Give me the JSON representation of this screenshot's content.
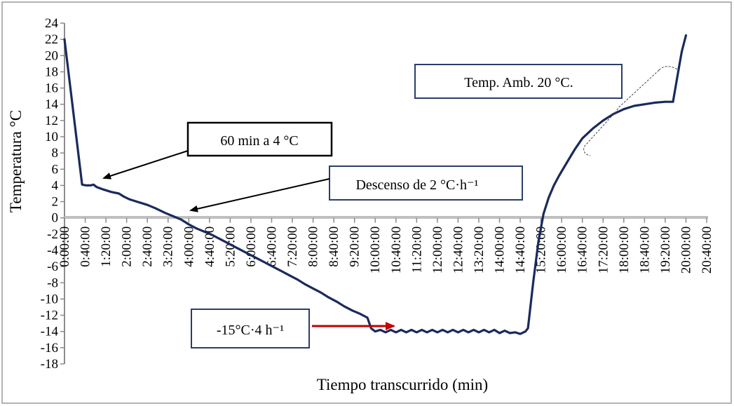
{
  "chart_data": {
    "type": "line",
    "xlabel": "Tiempo transcurrido (min)",
    "ylabel": "Temperatura °C",
    "ylim": [
      -18,
      24
    ],
    "y_ticks": [
      24,
      22,
      20,
      18,
      16,
      14,
      12,
      10,
      8,
      6,
      4,
      2,
      0,
      -2,
      -4,
      -6,
      -8,
      -10,
      -12,
      -14,
      -16,
      -18
    ],
    "xlim_minutes": [
      0,
      1240
    ],
    "x_tick_labels": [
      "0:00:00",
      "0:40:00",
      "1:20:00",
      "2:00:00",
      "2:40:00",
      "3:20:00",
      "4:00:00",
      "4:40:00",
      "5:20:00",
      "6:00:00",
      "6:40:00",
      "7:20:00",
      "8:00:00",
      "8:40:00",
      "9:20:00",
      "10:00:00",
      "10:40:00",
      "11:20:00",
      "12:00:00",
      "12:40:00",
      "13:20:00",
      "14:00:00",
      "14:40:00",
      "15:20:00",
      "16:00:00",
      "16:40:00",
      "17:20:00",
      "18:00:00",
      "18:40:00",
      "19:20:00",
      "20:00:00",
      "20:40:00"
    ],
    "grid": false,
    "series": [
      {
        "color": "#1a2a5c",
        "points": [
          [
            0,
            22
          ],
          [
            34,
            4.1
          ],
          [
            42,
            4.0
          ],
          [
            50,
            4.0
          ],
          [
            56,
            4.1
          ],
          [
            62,
            3.8
          ],
          [
            75,
            3.5
          ],
          [
            90,
            3.2
          ],
          [
            105,
            3.0
          ],
          [
            115,
            2.6
          ],
          [
            125,
            2.3
          ],
          [
            140,
            2.0
          ],
          [
            160,
            1.6
          ],
          [
            175,
            1.2
          ],
          [
            195,
            0.6
          ],
          [
            210,
            0.2
          ],
          [
            225,
            -0.2
          ],
          [
            240,
            -0.8
          ],
          [
            255,
            -1.3
          ],
          [
            270,
            -1.7
          ],
          [
            285,
            -2.1
          ],
          [
            300,
            -2.6
          ],
          [
            315,
            -3.1
          ],
          [
            330,
            -3.6
          ],
          [
            345,
            -4.1
          ],
          [
            360,
            -4.6
          ],
          [
            375,
            -5.1
          ],
          [
            390,
            -5.6
          ],
          [
            405,
            -6.1
          ],
          [
            420,
            -6.6
          ],
          [
            435,
            -7.1
          ],
          [
            450,
            -7.6
          ],
          [
            465,
            -8.2
          ],
          [
            480,
            -8.7
          ],
          [
            495,
            -9.2
          ],
          [
            510,
            -9.8
          ],
          [
            525,
            -10.3
          ],
          [
            540,
            -10.9
          ],
          [
            555,
            -11.4
          ],
          [
            570,
            -11.8
          ],
          [
            585,
            -12.3
          ],
          [
            592,
            -13.6
          ],
          [
            600,
            -14.0
          ],
          [
            610,
            -13.8
          ],
          [
            620,
            -14.1
          ],
          [
            630,
            -13.8
          ],
          [
            640,
            -14.1
          ],
          [
            650,
            -13.8
          ],
          [
            660,
            -14.1
          ],
          [
            670,
            -13.8
          ],
          [
            680,
            -14.1
          ],
          [
            690,
            -13.8
          ],
          [
            700,
            -14.1
          ],
          [
            710,
            -13.8
          ],
          [
            720,
            -14.1
          ],
          [
            730,
            -13.8
          ],
          [
            740,
            -14.1
          ],
          [
            750,
            -13.8
          ],
          [
            760,
            -14.1
          ],
          [
            770,
            -13.8
          ],
          [
            780,
            -14.1
          ],
          [
            790,
            -13.8
          ],
          [
            800,
            -14.1
          ],
          [
            810,
            -13.8
          ],
          [
            820,
            -14.1
          ],
          [
            830,
            -13.8
          ],
          [
            840,
            -14.2
          ],
          [
            850,
            -13.9
          ],
          [
            860,
            -14.2
          ],
          [
            870,
            -14.1
          ],
          [
            880,
            -14.3
          ],
          [
            890,
            -14.0
          ],
          [
            895,
            -13.6
          ],
          [
            905,
            -8.0
          ],
          [
            915,
            -3.0
          ],
          [
            925,
            0.5
          ],
          [
            935,
            2.5
          ],
          [
            945,
            4.0
          ],
          [
            955,
            5.2
          ],
          [
            970,
            6.8
          ],
          [
            985,
            8.4
          ],
          [
            1000,
            9.8
          ],
          [
            1020,
            11.0
          ],
          [
            1040,
            12.0
          ],
          [
            1060,
            12.8
          ],
          [
            1080,
            13.4
          ],
          [
            1100,
            13.8
          ],
          [
            1120,
            14.0
          ],
          [
            1140,
            14.2
          ],
          [
            1160,
            14.3
          ],
          [
            1175,
            14.3
          ],
          [
            1185,
            18.0
          ],
          [
            1192,
            20.5
          ],
          [
            1200,
            22.5
          ]
        ]
      }
    ],
    "annotations": [
      {
        "label": "60 min a 4 °C"
      },
      {
        "label": "Descenso de 2 °C·h⁻¹"
      },
      {
        "label": "Temp. Amb. 20 °C."
      },
      {
        "label": "-15°C·4 h⁻¹"
      }
    ]
  }
}
